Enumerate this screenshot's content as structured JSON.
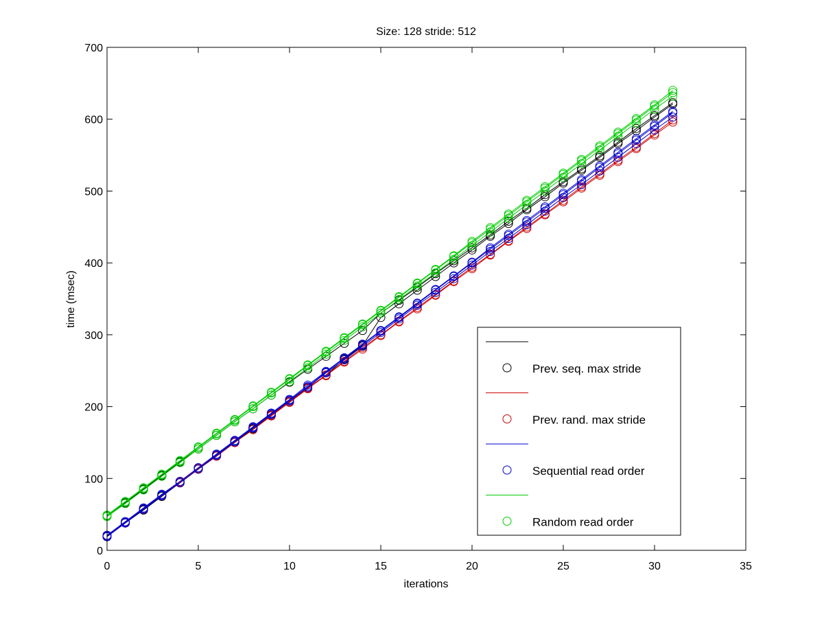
{
  "chart_data": {
    "type": "line",
    "title": "Size: 128 stride: 512",
    "xlabel": "iterations",
    "ylabel": "time (msec)",
    "xlim": [
      0,
      35
    ],
    "ylim": [
      0,
      700
    ],
    "xticks": [
      0,
      5,
      10,
      15,
      20,
      25,
      30,
      35
    ],
    "yticks": [
      0,
      100,
      200,
      300,
      400,
      500,
      600,
      700
    ],
    "grid": false,
    "marker": "circle",
    "legend_position": "lower-right",
    "x": [
      0,
      1,
      2,
      3,
      4,
      5,
      6,
      7,
      8,
      9,
      10,
      11,
      12,
      13,
      14,
      15,
      16,
      17,
      18,
      19,
      20,
      21,
      22,
      23,
      24,
      25,
      26,
      27,
      28,
      29,
      30,
      31
    ],
    "series": [
      {
        "name": "Prev. seq. max stride",
        "color": "#000000",
        "runs": [
          [
            19,
            38,
            56,
            75,
            94,
            113,
            131,
            150,
            169,
            188,
            206,
            225,
            244,
            266,
            285,
            324,
            343,
            362,
            381,
            400,
            418,
            437,
            455,
            474,
            492,
            511,
            529,
            547,
            566,
            584,
            603,
            621
          ],
          [
            48,
            66,
            85,
            104,
            123,
            141,
            160,
            179,
            197,
            216,
            234,
            252,
            270,
            288,
            306,
            330,
            348,
            366,
            385,
            403,
            421,
            439,
            458,
            476,
            495,
            513,
            531,
            549,
            568,
            587,
            605,
            623
          ]
        ]
      },
      {
        "name": "Prev. rand. max stride",
        "color": "#cc0000",
        "runs": [
          [
            19,
            38,
            57,
            76,
            94,
            113,
            131,
            150,
            168,
            187,
            206,
            225,
            243,
            262,
            280,
            299,
            318,
            336,
            355,
            374,
            392,
            411,
            430,
            448,
            467,
            485,
            504,
            522,
            541,
            559,
            578,
            596
          ],
          [
            20,
            39,
            58,
            76,
            95,
            114,
            132,
            151,
            170,
            188,
            207,
            226,
            244,
            263,
            282,
            300,
            319,
            338,
            356,
            375,
            394,
            412,
            431,
            450,
            468,
            487,
            506,
            524,
            543,
            561,
            580,
            599
          ]
        ]
      },
      {
        "name": "Sequential read order",
        "color": "#0000cc",
        "runs": [
          [
            19,
            38,
            57,
            76,
            94,
            113,
            132,
            151,
            170,
            189,
            208,
            227,
            247,
            265,
            284,
            303,
            322,
            341,
            359,
            378,
            397,
            416,
            434,
            453,
            472,
            491,
            509,
            528,
            547,
            566,
            585,
            603
          ],
          [
            20,
            39,
            58,
            77,
            96,
            115,
            133,
            152,
            171,
            190,
            209,
            228,
            248,
            267,
            286,
            305,
            324,
            343,
            362,
            381,
            400,
            419,
            438,
            457,
            476,
            495,
            514,
            533,
            552,
            571,
            590,
            609
          ],
          [
            21,
            40,
            59,
            78,
            96,
            115,
            134,
            153,
            172,
            191,
            210,
            230,
            249,
            268,
            287,
            306,
            325,
            344,
            363,
            382,
            401,
            421,
            440,
            459,
            478,
            497,
            516,
            535,
            554,
            573,
            592,
            611
          ]
        ]
      },
      {
        "name": "Random read order",
        "color": "#00cc00",
        "runs": [
          [
            47,
            65,
            84,
            103,
            122,
            141,
            160,
            179,
            197,
            216,
            235,
            254,
            273,
            292,
            311,
            330,
            349,
            368,
            386,
            405,
            424,
            443,
            462,
            481,
            500,
            519,
            538,
            557,
            576,
            595,
            614,
            632
          ],
          [
            48,
            67,
            86,
            105,
            124,
            143,
            162,
            181,
            200,
            219,
            238,
            257,
            276,
            295,
            314,
            333,
            352,
            371,
            390,
            409,
            428,
            447,
            466,
            485,
            504,
            523,
            542,
            561,
            580,
            599,
            618,
            637
          ],
          [
            49,
            68,
            87,
            106,
            125,
            144,
            163,
            182,
            201,
            220,
            239,
            258,
            277,
            296,
            315,
            334,
            353,
            372,
            391,
            410,
            430,
            449,
            468,
            487,
            506,
            525,
            544,
            563,
            582,
            601,
            620,
            640
          ]
        ]
      }
    ]
  }
}
